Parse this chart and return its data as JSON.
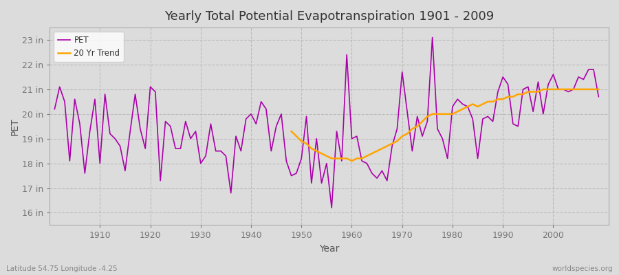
{
  "title": "Yearly Total Potential Evapotranspiration 1901 - 2009",
  "xlabel": "Year",
  "ylabel": "PET",
  "footnote_left": "Latitude 54.75 Longitude -4.25",
  "footnote_right": "worldspecies.org",
  "ylim": [
    15.5,
    23.5
  ],
  "yticks": [
    16,
    17,
    18,
    19,
    20,
    21,
    22,
    23
  ],
  "ytick_labels": [
    "16 in",
    "17 in",
    "18 in",
    "19 in",
    "20 in",
    "21 in",
    "22 in",
    "23 in"
  ],
  "fig_bg_color": "#dcdcdc",
  "plot_bg_color": "#dcdcdc",
  "pet_color": "#aa00aa",
  "trend_color": "#ffa500",
  "pet_label": "PET",
  "trend_label": "20 Yr Trend",
  "years": [
    1901,
    1902,
    1903,
    1904,
    1905,
    1906,
    1907,
    1908,
    1909,
    1910,
    1911,
    1912,
    1913,
    1914,
    1915,
    1916,
    1917,
    1918,
    1919,
    1920,
    1921,
    1922,
    1923,
    1924,
    1925,
    1926,
    1927,
    1928,
    1929,
    1930,
    1931,
    1932,
    1933,
    1934,
    1935,
    1936,
    1937,
    1938,
    1939,
    1940,
    1941,
    1942,
    1943,
    1944,
    1945,
    1946,
    1947,
    1948,
    1949,
    1950,
    1951,
    1952,
    1953,
    1954,
    1955,
    1956,
    1957,
    1958,
    1959,
    1960,
    1961,
    1962,
    1963,
    1964,
    1965,
    1966,
    1967,
    1968,
    1969,
    1970,
    1971,
    1972,
    1973,
    1974,
    1975,
    1976,
    1977,
    1978,
    1979,
    1980,
    1981,
    1982,
    1983,
    1984,
    1985,
    1986,
    1987,
    1988,
    1989,
    1990,
    1991,
    1992,
    1993,
    1994,
    1995,
    1996,
    1997,
    1998,
    1999,
    2000,
    2001,
    2002,
    2003,
    2004,
    2005,
    2006,
    2007,
    2008,
    2009
  ],
  "pet_values": [
    20.2,
    21.1,
    20.5,
    18.1,
    20.6,
    19.6,
    17.6,
    19.3,
    20.6,
    18.0,
    20.8,
    19.2,
    19.0,
    18.7,
    17.7,
    19.3,
    20.8,
    19.4,
    18.6,
    21.1,
    20.9,
    17.3,
    19.7,
    19.5,
    18.6,
    18.6,
    19.7,
    19.0,
    19.3,
    18.0,
    18.3,
    19.6,
    18.5,
    18.5,
    18.3,
    16.8,
    19.1,
    18.5,
    19.8,
    20.0,
    19.6,
    20.5,
    20.2,
    18.5,
    19.5,
    20.0,
    18.1,
    17.5,
    17.6,
    18.2,
    19.9,
    17.2,
    19.0,
    17.2,
    18.0,
    16.2,
    19.3,
    18.1,
    22.4,
    19.0,
    19.1,
    18.1,
    18.0,
    17.6,
    17.4,
    17.7,
    17.3,
    18.7,
    19.4,
    21.7,
    20.1,
    18.5,
    19.9,
    19.1,
    19.7,
    23.1,
    19.4,
    19.0,
    18.2,
    20.3,
    20.6,
    20.4,
    20.3,
    19.8,
    18.2,
    19.8,
    19.9,
    19.7,
    20.9,
    21.5,
    21.2,
    19.6,
    19.5,
    21.0,
    21.1,
    20.1,
    21.3,
    20.0,
    21.2,
    21.6,
    21.0,
    21.0,
    20.9,
    21.0,
    21.5,
    21.4,
    21.8,
    21.8,
    20.7
  ],
  "trend_years": [
    1948,
    1949,
    1950,
    1951,
    1952,
    1953,
    1954,
    1955,
    1956,
    1957,
    1958,
    1959,
    1960,
    1961,
    1962,
    1963,
    1964,
    1965,
    1966,
    1967,
    1968,
    1969,
    1970,
    1971,
    1972,
    1973,
    1974,
    1975,
    1976,
    1977,
    1978,
    1979,
    1980,
    1981,
    1982,
    1983,
    1984,
    1985,
    1986,
    1987,
    1988,
    1989,
    1990,
    1991,
    1992,
    1993,
    1994,
    1995,
    1996,
    1997,
    1998,
    1999,
    2000,
    2001,
    2002,
    2003,
    2004,
    2005,
    2006,
    2007,
    2008,
    2009
  ],
  "trend_values": [
    19.3,
    19.1,
    18.9,
    18.8,
    18.6,
    18.5,
    18.4,
    18.3,
    18.2,
    18.2,
    18.2,
    18.2,
    18.1,
    18.2,
    18.2,
    18.3,
    18.4,
    18.5,
    18.6,
    18.7,
    18.8,
    18.9,
    19.1,
    19.2,
    19.4,
    19.5,
    19.7,
    19.9,
    20.0,
    20.0,
    20.0,
    20.0,
    20.0,
    20.1,
    20.2,
    20.3,
    20.4,
    20.3,
    20.4,
    20.5,
    20.5,
    20.6,
    20.6,
    20.7,
    20.7,
    20.8,
    20.8,
    20.9,
    20.9,
    20.9,
    21.0,
    21.0,
    21.0,
    21.0,
    21.0,
    21.0,
    21.0,
    21.0,
    21.0,
    21.0,
    21.0,
    21.0
  ]
}
